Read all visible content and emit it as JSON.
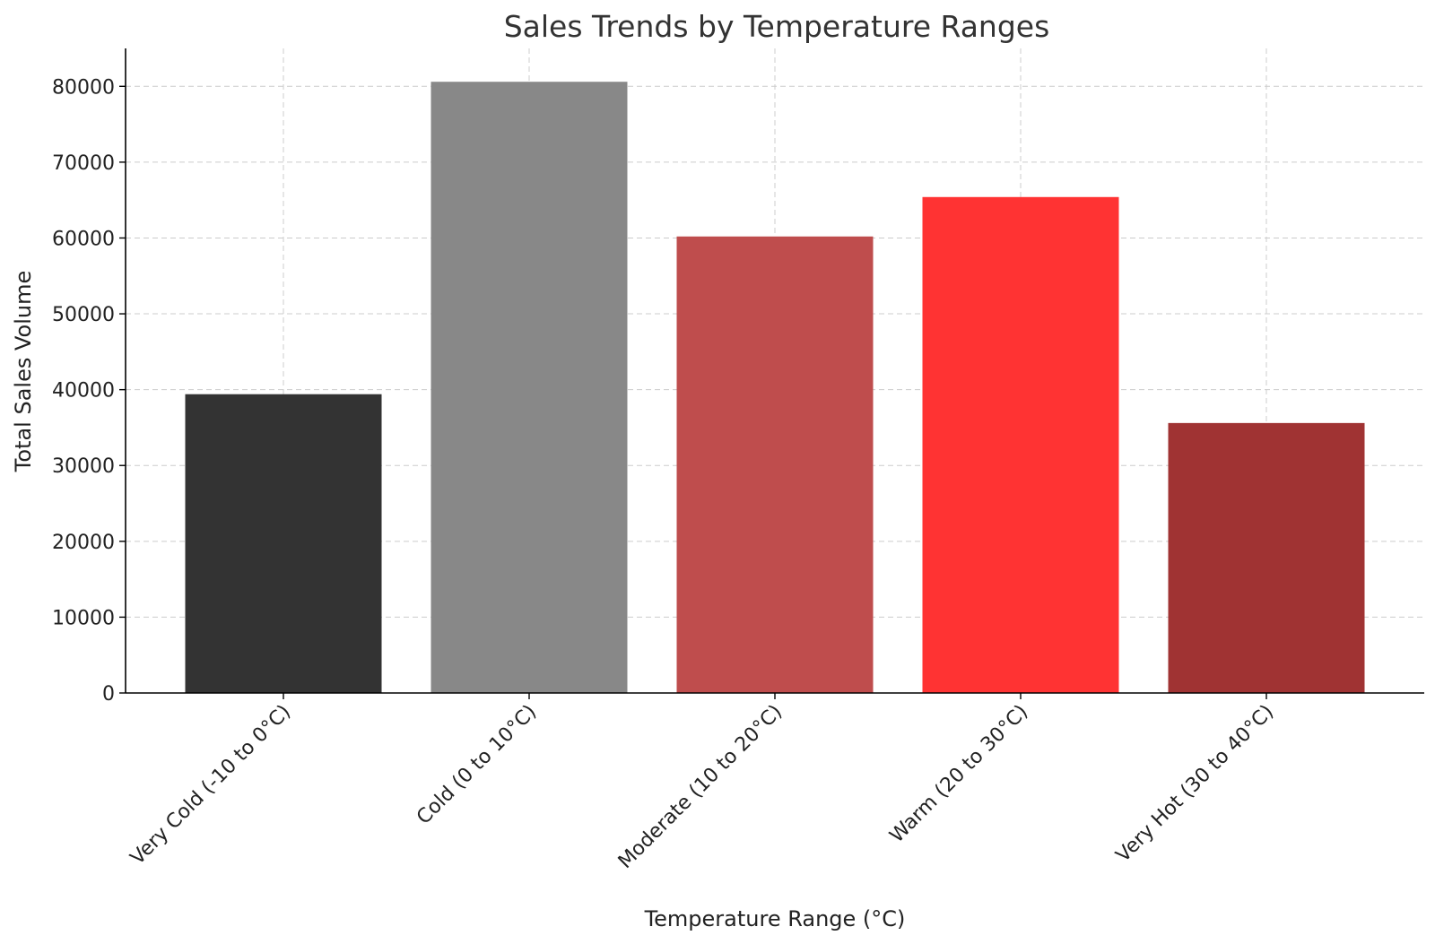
{
  "chart_data": {
    "type": "bar",
    "title": "Sales Trends by Temperature Ranges",
    "xlabel": "Temperature Range (°C)",
    "ylabel": "Total Sales Volume",
    "categories": [
      "Very Cold (-10 to 0°C)",
      "Cold (0 to 10°C)",
      "Moderate (10 to 20°C)",
      "Warm (20 to 30°C)",
      "Very Hot (30 to 40°C)"
    ],
    "values": [
      39400,
      80600,
      60200,
      65400,
      35600
    ],
    "colors": [
      "#333333",
      "#888888",
      "#bf4d4d",
      "#ff3333",
      "#a03333"
    ],
    "ylim": [
      0,
      85000
    ],
    "yticks": [
      0,
      10000,
      20000,
      30000,
      40000,
      50000,
      60000,
      70000,
      80000
    ],
    "grid": true
  }
}
